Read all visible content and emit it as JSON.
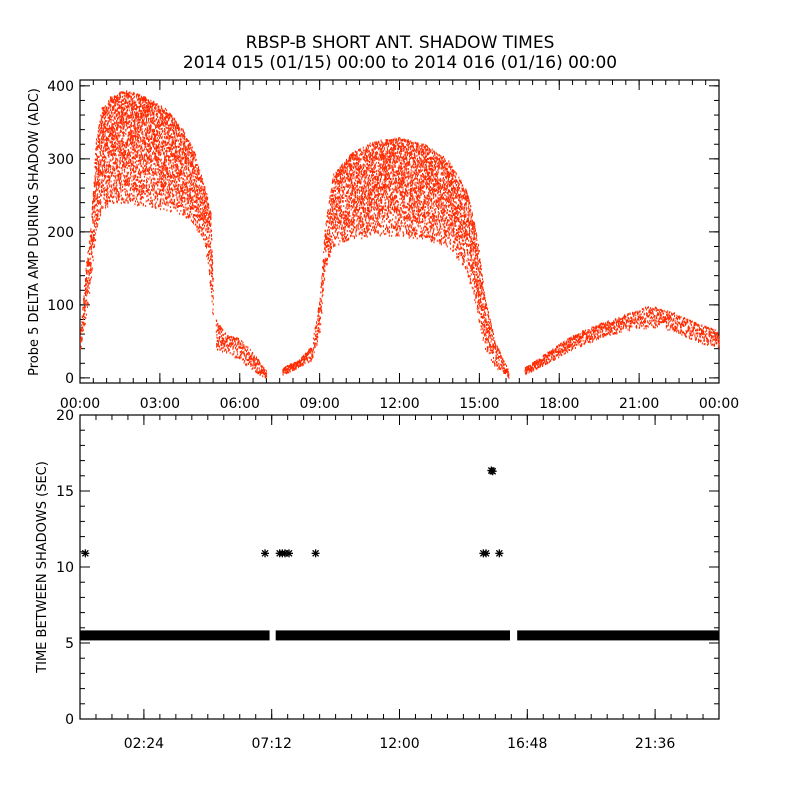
{
  "chart_data": [
    {
      "type": "scatter",
      "title": "RBSP-B SHORT ANT. SHADOW TIMES",
      "subtitle": "2014 015 (01/15) 00:00 to 2014 016 (01/16) 00:00",
      "xlabel": "",
      "ylabel": "Probe 5 DELTA AMP DURING SHADOW (ADC)",
      "x_unit": "hours",
      "xlim": [
        0,
        24
      ],
      "ylim": [
        -7,
        408
      ],
      "x_ticks": [
        0,
        3,
        6,
        9,
        12,
        15,
        18,
        21,
        24
      ],
      "x_tick_labels": [
        "00:00",
        "03:00",
        "06:00",
        "09:00",
        "12:00",
        "15:00",
        "18:00",
        "21:00",
        "00:00"
      ],
      "y_ticks": [
        0,
        100,
        200,
        300,
        400
      ],
      "y_tick_labels": [
        "0",
        "100",
        "200",
        "300",
        "400"
      ],
      "color": "#ff2a00",
      "grid": false,
      "envelope_note": "dense point cloud; each row = [hour, low, high]",
      "series": [
        {
          "name": "segment-1",
          "envelope": [
            [
              0.0,
              30,
              60
            ],
            [
              0.2,
              80,
              150
            ],
            [
              0.4,
              130,
              210
            ],
            [
              0.6,
              200,
              330
            ],
            [
              0.8,
              230,
              370
            ],
            [
              1.2,
              240,
              390
            ],
            [
              1.8,
              240,
              395
            ],
            [
              2.5,
              235,
              385
            ],
            [
              3.2,
              230,
              370
            ],
            [
              3.8,
              225,
              345
            ],
            [
              4.3,
              210,
              310
            ],
            [
              4.7,
              180,
              260
            ],
            [
              4.9,
              120,
              230
            ],
            [
              5.0,
              70,
              130
            ]
          ]
        },
        {
          "name": "segment-2",
          "envelope": [
            [
              5.1,
              40,
              80
            ],
            [
              5.5,
              35,
              60
            ],
            [
              6.0,
              25,
              55
            ],
            [
              6.5,
              10,
              35
            ],
            [
              7.0,
              0,
              10
            ]
          ]
        },
        {
          "name": "segment-3",
          "envelope": [
            [
              7.6,
              5,
              15
            ],
            [
              8.2,
              15,
              25
            ],
            [
              8.7,
              25,
              45
            ],
            [
              9.0,
              60,
              110
            ],
            [
              9.2,
              150,
              210
            ],
            [
              9.5,
              180,
              280
            ],
            [
              10.2,
              190,
              310
            ],
            [
              11.0,
              195,
              325
            ],
            [
              12.0,
              195,
              330
            ],
            [
              13.0,
              190,
              320
            ],
            [
              13.8,
              180,
              300
            ],
            [
              14.5,
              150,
              260
            ],
            [
              14.9,
              90,
              200
            ],
            [
              15.2,
              40,
              110
            ],
            [
              15.6,
              15,
              50
            ],
            [
              16.1,
              0,
              10
            ]
          ]
        },
        {
          "name": "segment-4",
          "envelope": [
            [
              16.7,
              5,
              15
            ],
            [
              17.5,
              20,
              35
            ],
            [
              18.5,
              40,
              60
            ],
            [
              19.5,
              55,
              75
            ],
            [
              20.5,
              65,
              88
            ],
            [
              21.4,
              70,
              100
            ],
            [
              22.3,
              65,
              90
            ],
            [
              23.2,
              50,
              75
            ],
            [
              24.0,
              40,
              65
            ]
          ]
        }
      ]
    },
    {
      "type": "scatter",
      "ylabel": "TIME BETWEEN SHADOWS (SEC)",
      "x_unit": "hours",
      "xlim": [
        0,
        24
      ],
      "ylim": [
        0,
        20
      ],
      "x_ticks": [
        2.4,
        7.2,
        12,
        16.8,
        21.6
      ],
      "x_tick_labels": [
        "02:24",
        "07:12",
        "12:00",
        "16:48",
        "21:36"
      ],
      "y_ticks": [
        0,
        5,
        10,
        15,
        20
      ],
      "y_tick_labels": [
        "0",
        "5",
        "10",
        "15",
        "20"
      ],
      "marker": "asterisk",
      "color": "#000000",
      "band_value": 5.5,
      "band_ranges": [
        [
          0.0,
          7.12
        ],
        [
          7.35,
          16.15
        ],
        [
          16.42,
          24.0
        ]
      ],
      "points": [
        [
          0.2,
          10.9
        ],
        [
          6.95,
          10.9
        ],
        [
          7.5,
          10.9
        ],
        [
          7.6,
          10.9
        ],
        [
          7.7,
          10.9
        ],
        [
          7.85,
          10.9
        ],
        [
          8.85,
          10.9
        ],
        [
          15.15,
          10.9
        ],
        [
          15.25,
          10.9
        ],
        [
          15.75,
          10.9
        ],
        [
          15.45,
          16.35
        ],
        [
          15.5,
          16.3
        ]
      ]
    }
  ]
}
